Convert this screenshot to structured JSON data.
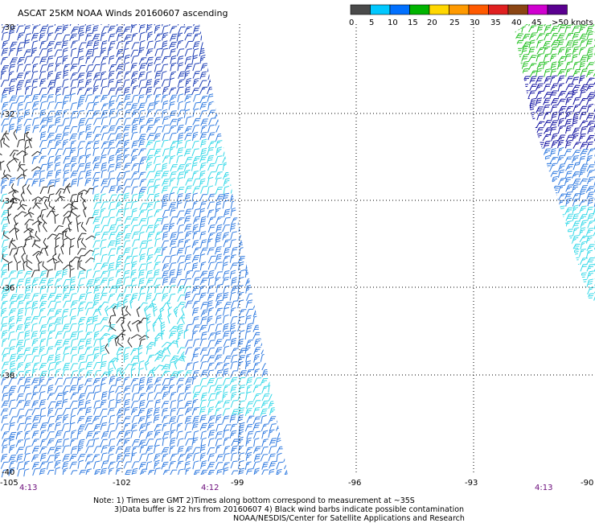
{
  "title": "ASCAT 25KM NOAA Winds 20160607 ascending",
  "legend": {
    "ticks": [
      "0",
      "5",
      "10",
      "15",
      "20",
      "25",
      "30",
      "35",
      "40",
      "45",
      ">50 knots"
    ],
    "colors": [
      "#4a4a4a",
      "#00c8ff",
      "#0070ff",
      "#00b400",
      "#ffd700",
      "#ff9a00",
      "#ff5a00",
      "#e02020",
      "#8b4513",
      "#d000d0",
      "#5a0090"
    ]
  },
  "axes": {
    "lat_labels": [
      "-30",
      "-32",
      "-34",
      "-36",
      "-38",
      "-40"
    ],
    "lon_labels": [
      "-105",
      "-102",
      "-99",
      "-96",
      "-93",
      "-90"
    ]
  },
  "time_labels": {
    "left": "4:13",
    "center": "4:12",
    "right": "4:13"
  },
  "notes": [
    "Note: 1) Times are GMT 2)Times along bottom correspond to measurement at ~35S",
    "3)Data buffer is 22 hrs from 20160607 4) Black wind barbs indicate possible contamination",
    "NOAA/NESDIS/Center for Satellite Applications and Research"
  ],
  "colors": {
    "barb_dark_blue": "#1a3cb4",
    "barb_mid_blue": "#2f7ae0",
    "barb_cyan": "#33d8e8",
    "barb_green": "#22c022",
    "barb_navy": "#1010a0",
    "barb_black": "#222222",
    "time_label": "#6a0a7a"
  }
}
